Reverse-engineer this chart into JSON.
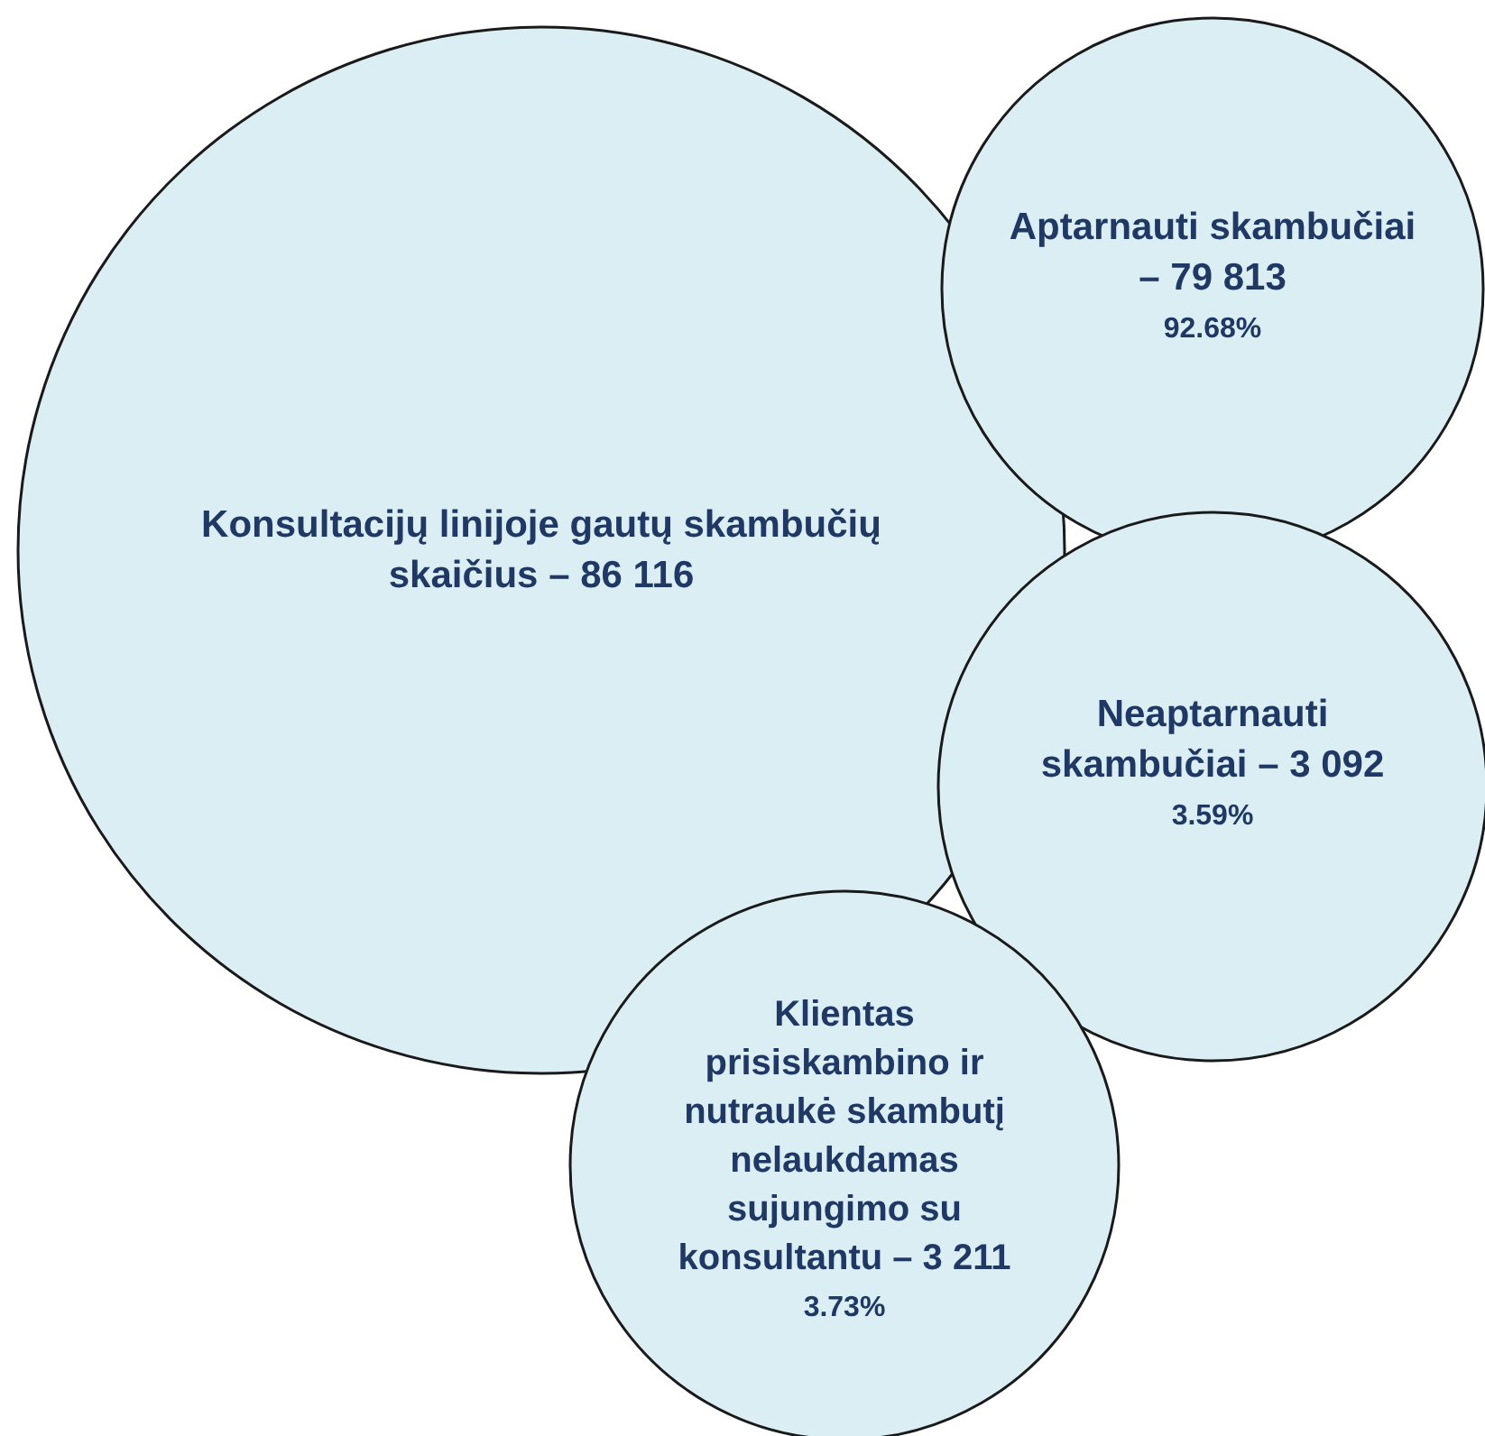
{
  "chart_data": {
    "type": "other",
    "categories": [
      "Konsultacijų linijoje gautų skambučių skaičius –",
      "Aptarnauti skambučiai –",
      "Neaptarnauti skambučiai –",
      "Klientas prisiskambino ir nutraukė skambutį nelaukdamas sujungimo su konsultantu –"
    ],
    "data_labels": true,
    "series": [
      {
        "color": "#dbeef4",
        "values": [
          86116,
          79813,
          3092,
          3211
        ]
      },
      {
        "values": [
          null,
          92.68,
          3.59,
          3.73
        ],
        "value_labels": [
          null,
          "92.68%",
          "3.59%",
          "3.73%"
        ]
      }
    ]
  }
}
